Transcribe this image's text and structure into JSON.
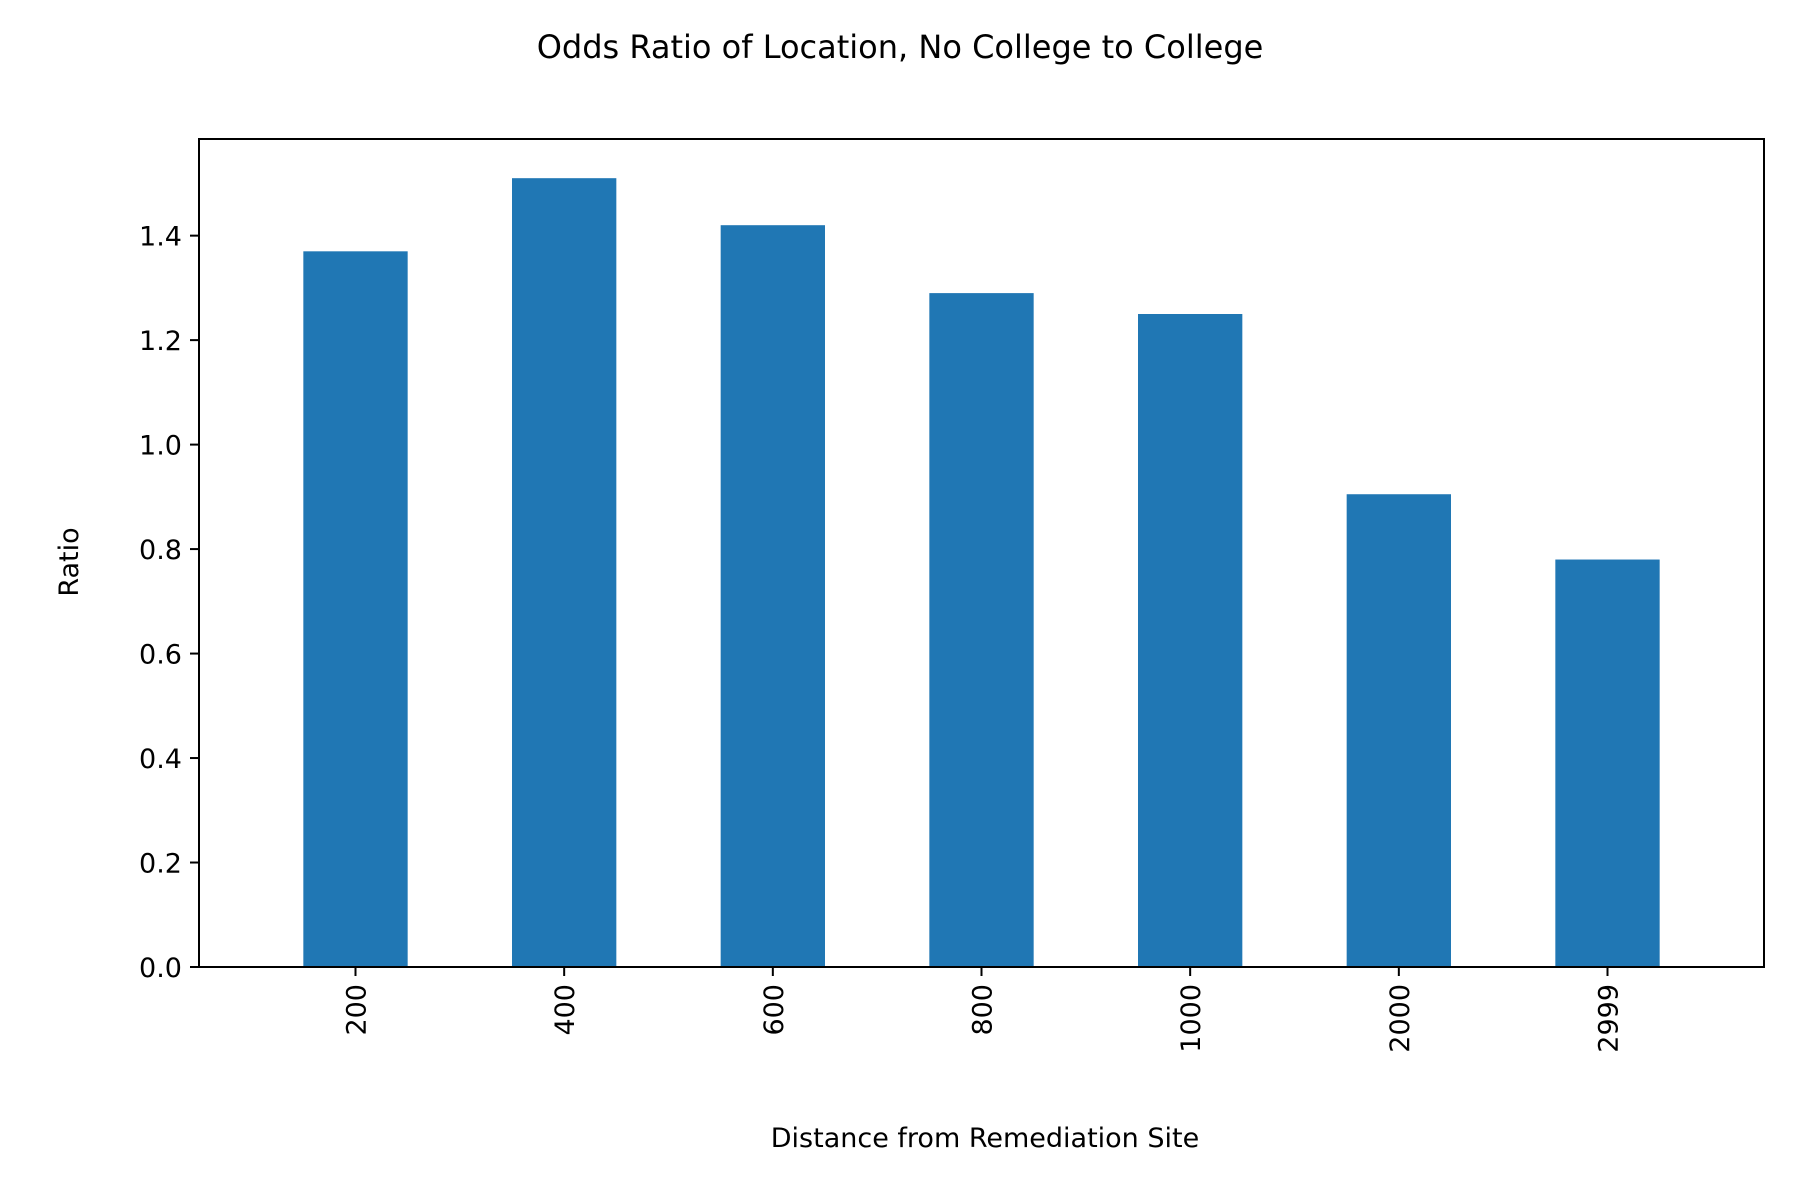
{
  "chart_data": {
    "type": "bar",
    "title": "Odds Ratio of Location, No College to College",
    "xlabel": "Distance from Remediation Site",
    "ylabel": "Ratio",
    "categories": [
      "200",
      "400",
      "600",
      "800",
      "1000",
      "2000",
      "2999"
    ],
    "values": [
      1.37,
      1.51,
      1.42,
      1.29,
      1.25,
      0.905,
      0.78
    ],
    "yticks": [
      "0.0",
      "0.2",
      "0.4",
      "0.6",
      "0.8",
      "1.0",
      "1.2",
      "1.4"
    ],
    "ylim": [
      0,
      1.585
    ],
    "grid": false,
    "legend": "none",
    "colors": {
      "bar": "#2077b4",
      "axis": "#000000"
    }
  }
}
